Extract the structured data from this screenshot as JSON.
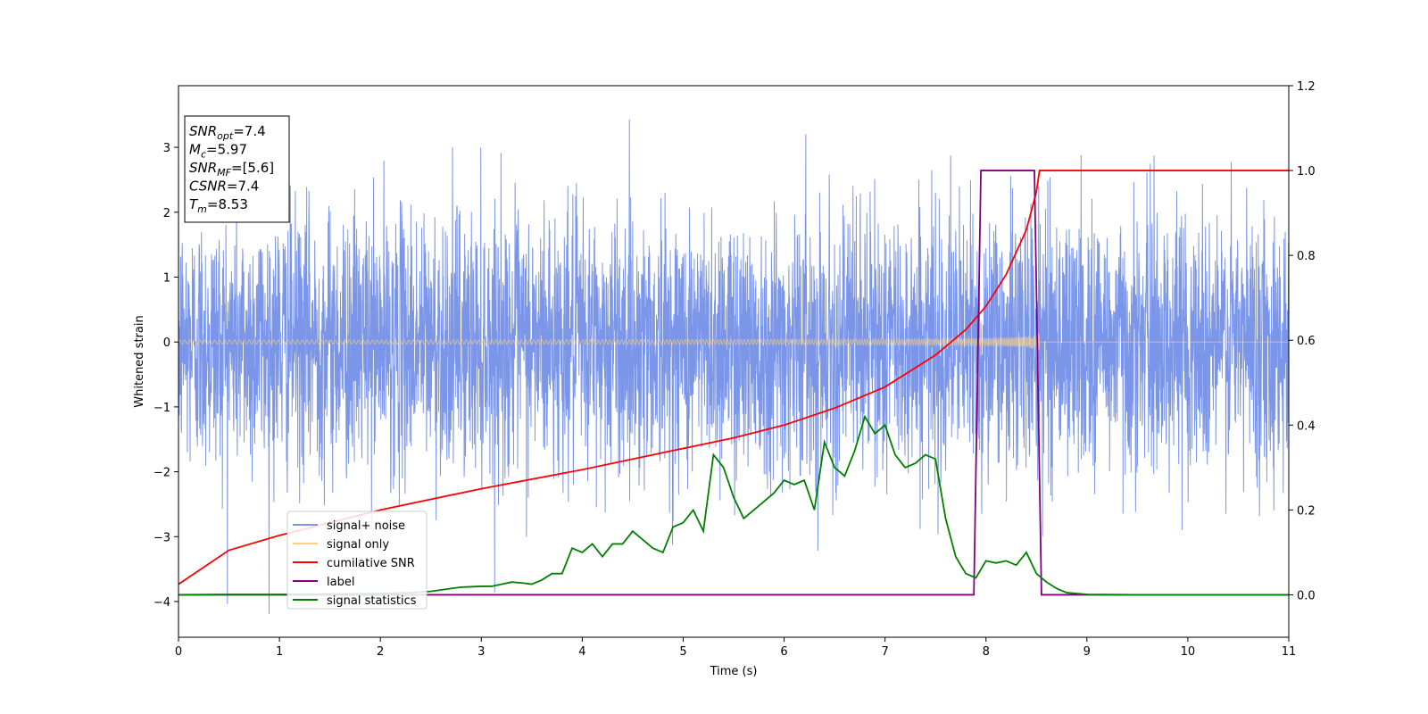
{
  "chart_data": {
    "type": "line",
    "xlabel": "Time (s)",
    "ylabel": "Whitened strain",
    "xlim": [
      0,
      11
    ],
    "ylim_left": [
      -4.55,
      3.95
    ],
    "ylim_right": [
      -0.1,
      1.2
    ],
    "x_ticks": [
      0,
      1,
      2,
      3,
      4,
      5,
      6,
      7,
      8,
      9,
      10,
      11
    ],
    "y_ticks_left": [
      -4,
      -3,
      -2,
      -1,
      0,
      1,
      2,
      3
    ],
    "y_ticks_right": [
      0.0,
      0.2,
      0.4,
      0.6,
      0.8,
      1.0,
      1.2
    ],
    "grid": false,
    "legend_position": "lower-left",
    "info_box": {
      "lines": [
        {
          "sym": "SNR",
          "sub": "opt",
          "val": "=7.4"
        },
        {
          "sym": "M",
          "sub": "c",
          "val": "=5.97"
        },
        {
          "sym": "SNR",
          "sub": "MF",
          "val": "=[5.6]"
        },
        {
          "sym": "CSNR",
          "sub": "",
          "val": "=7.4"
        },
        {
          "sym": "T",
          "sub": "m",
          "val": "=8.53"
        }
      ]
    },
    "series": [
      {
        "name": "signal+ noise",
        "color": "#7b96e8",
        "axis": "left",
        "kind": "noise",
        "sigma": 1.0,
        "merger_time": 8.53
      },
      {
        "name": "signal only",
        "color": "#ffd27f",
        "axis": "left",
        "kind": "chirp",
        "amplitude_start": 0.03,
        "amplitude_end": 0.45,
        "merger_time": 8.53
      },
      {
        "name": "cumilative SNR",
        "color": "#ff0000",
        "axis": "right",
        "x": [
          0,
          0.5,
          1,
          2,
          3,
          4,
          5,
          5.5,
          6,
          6.5,
          7,
          7.5,
          7.8,
          8.0,
          8.2,
          8.4,
          8.5,
          8.53,
          9,
          10,
          11
        ],
        "y": [
          0.025,
          0.105,
          0.14,
          0.2,
          0.25,
          0.295,
          0.345,
          0.37,
          0.4,
          0.44,
          0.49,
          0.565,
          0.625,
          0.68,
          0.755,
          0.86,
          0.95,
          1.0,
          1.0,
          1.0,
          1.0
        ]
      },
      {
        "name": "label",
        "color": "#800080",
        "axis": "right",
        "x": [
          0,
          7.88,
          7.95,
          8.48,
          8.55,
          11
        ],
        "y": [
          0,
          0,
          1,
          1,
          0,
          0
        ]
      },
      {
        "name": "signal statistics",
        "color": "#008000",
        "axis": "right",
        "x": [
          0,
          0.5,
          1,
          1.5,
          2,
          2.3,
          2.5,
          2.7,
          2.8,
          2.9,
          3,
          3.1,
          3.2,
          3.3,
          3.4,
          3.5,
          3.6,
          3.7,
          3.8,
          3.9,
          4,
          4.1,
          4.2,
          4.3,
          4.4,
          4.5,
          4.6,
          4.7,
          4.8,
          4.9,
          5,
          5.1,
          5.2,
          5.3,
          5.4,
          5.5,
          5.6,
          5.7,
          5.8,
          5.9,
          6,
          6.1,
          6.2,
          6.3,
          6.4,
          6.5,
          6.6,
          6.7,
          6.8,
          6.9,
          7,
          7.1,
          7.2,
          7.3,
          7.4,
          7.5,
          7.6,
          7.7,
          7.8,
          7.9,
          8,
          8.1,
          8.2,
          8.3,
          8.4,
          8.5,
          8.6,
          8.7,
          8.8,
          9,
          9.5,
          10,
          11
        ],
        "y": [
          0.0,
          0.001,
          0.001,
          0.002,
          0.003,
          0.005,
          0.008,
          0.015,
          0.018,
          0.019,
          0.02,
          0.02,
          0.025,
          0.03,
          0.028,
          0.025,
          0.035,
          0.05,
          0.05,
          0.11,
          0.1,
          0.12,
          0.09,
          0.12,
          0.12,
          0.15,
          0.13,
          0.11,
          0.1,
          0.16,
          0.17,
          0.2,
          0.15,
          0.33,
          0.3,
          0.23,
          0.18,
          0.2,
          0.22,
          0.24,
          0.27,
          0.26,
          0.27,
          0.2,
          0.36,
          0.3,
          0.28,
          0.34,
          0.42,
          0.38,
          0.4,
          0.33,
          0.3,
          0.31,
          0.33,
          0.32,
          0.18,
          0.09,
          0.05,
          0.04,
          0.08,
          0.075,
          0.08,
          0.07,
          0.1,
          0.05,
          0.03,
          0.015,
          0.005,
          0.001,
          0.0,
          0.0,
          0.0
        ]
      }
    ]
  }
}
